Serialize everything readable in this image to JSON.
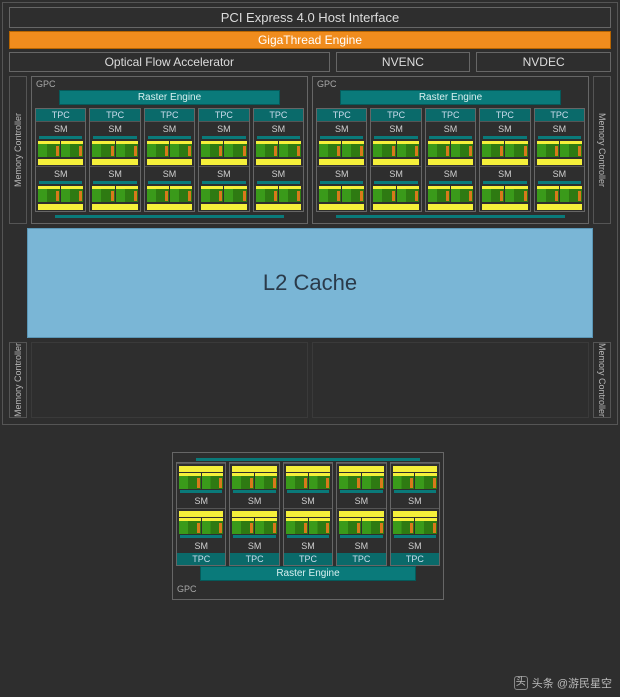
{
  "header": {
    "pci": "PCI Express 4.0 Host Interface",
    "gigathread": "GigaThread Engine",
    "ofa": "Optical Flow Accelerator",
    "nvenc": "NVENC",
    "nvdec": "NVDEC"
  },
  "labels": {
    "memctrl": "Memory Controller",
    "gpc": "GPC",
    "raster": "Raster Engine",
    "tpc": "TPC",
    "sm": "SM",
    "l2": "L2 Cache"
  },
  "colors": {
    "background": "#2e2e2e",
    "border": "#666666",
    "text_light": "#dcdcdc",
    "gigathread_bg": "#f08c1d",
    "teal": "#0a7a7a",
    "l2_bg": "#7ab6d6",
    "core_green": "#3a9a1a",
    "core_yellow": "#f5f03a",
    "core_orange": "#d87a1a"
  },
  "layout": {
    "gpc_count": 3,
    "tpc_per_gpc": 5,
    "sm_per_tpc": 2,
    "core_columns_per_sm": 2,
    "memctrl_count": 4
  },
  "watermark": {
    "text": "头条 @游民星空",
    "icon": "头"
  }
}
